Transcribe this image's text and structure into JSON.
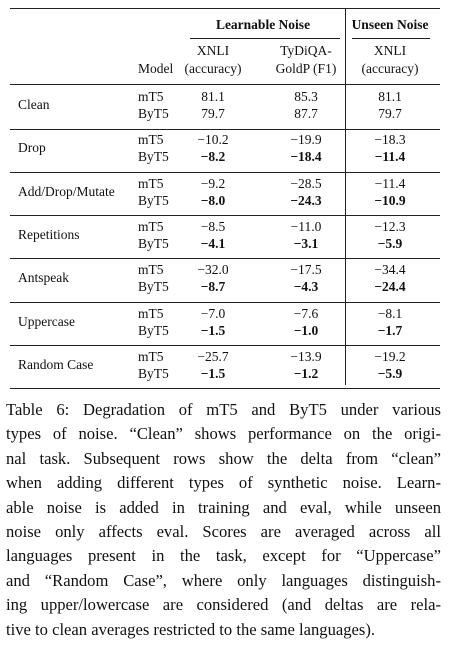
{
  "header": {
    "group_labels": [
      "Learnable Noise",
      "Unseen Noise"
    ],
    "model_label": "Model",
    "columns": [
      {
        "lines": [
          "XNLI",
          "(accuracy)"
        ]
      },
      {
        "lines": [
          "TyDiQA-",
          "GoldP (F1)"
        ]
      },
      {
        "lines": [
          "XNLI",
          "(accuracy)"
        ]
      }
    ]
  },
  "table": {
    "rows": [
      {
        "label": "Clean",
        "models": [
          "mT5",
          "ByT5"
        ],
        "values": [
          [
            "81.1",
            "85.3",
            "81.1"
          ],
          [
            "79.7",
            "87.7",
            "79.7"
          ]
        ],
        "bold": [
          false,
          false
        ]
      },
      {
        "label": "Drop",
        "models": [
          "mT5",
          "ByT5"
        ],
        "values": [
          [
            "−10.2",
            "−19.9",
            "−18.3"
          ],
          [
            "−8.2",
            "−18.4",
            "−11.4"
          ]
        ],
        "bold": [
          false,
          true
        ]
      },
      {
        "label": "Add/Drop/Mutate",
        "models": [
          "mT5",
          "ByT5"
        ],
        "values": [
          [
            "−9.2",
            "−28.5",
            "−11.4"
          ],
          [
            "−8.0",
            "−24.3",
            "−10.9"
          ]
        ],
        "bold": [
          false,
          true
        ]
      },
      {
        "label": "Repetitions",
        "models": [
          "mT5",
          "ByT5"
        ],
        "values": [
          [
            "−8.5",
            "−11.0",
            "−12.3"
          ],
          [
            "−4.1",
            "−3.1",
            "−5.9"
          ]
        ],
        "bold": [
          false,
          true
        ]
      },
      {
        "label": "Antspeak",
        "models": [
          "mT5",
          "ByT5"
        ],
        "values": [
          [
            "−32.0",
            "−17.5",
            "−34.4"
          ],
          [
            "−8.7",
            "−4.3",
            "−24.4"
          ]
        ],
        "bold": [
          false,
          true
        ]
      },
      {
        "label": "Uppercase",
        "models": [
          "mT5",
          "ByT5"
        ],
        "values": [
          [
            "−7.0",
            "−7.6",
            "−8.1"
          ],
          [
            "−1.5",
            "−1.0",
            "−1.7"
          ]
        ],
        "bold": [
          false,
          true
        ]
      },
      {
        "label": "Random Case",
        "models": [
          "mT5",
          "ByT5"
        ],
        "values": [
          [
            "−25.7",
            "−13.9",
            "−19.2"
          ],
          [
            "−1.5",
            "−1.2",
            "−5.9"
          ]
        ],
        "bold": [
          false,
          true
        ]
      }
    ]
  },
  "caption": {
    "lines": [
      "Table 6: Degradation of mT5 and ByT5 under various",
      "types of noise. “Clean” shows performance on the origi-",
      "nal task. Subsequent rows show the delta from “clean”",
      "when adding different types of synthetic noise. Learn-",
      "able noise is added in training and eval, while unseen",
      "noise only affects eval. Scores are averaged across all",
      "languages present in the task, except for “Uppercase”",
      "and “Random Case”, where only languages distinguish-",
      "ing upper/lowercase are considered (and deltas are rela-",
      "tive to clean averages restricted to the same languages)."
    ]
  }
}
